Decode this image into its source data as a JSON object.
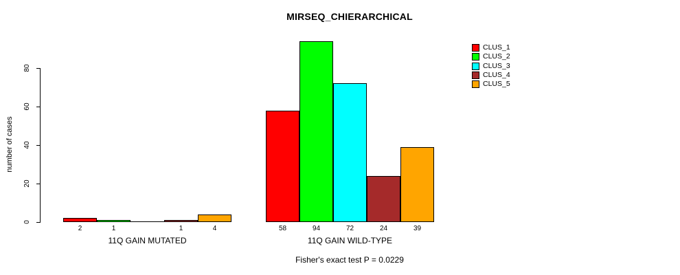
{
  "chart_data": {
    "type": "bar",
    "title": "MIRSEQ_CHIERARCHICAL",
    "ylabel": "number of cases",
    "xlabel": "",
    "ylim": [
      0,
      94
    ],
    "yticks": [
      0,
      20,
      40,
      60,
      80
    ],
    "grid": false,
    "legend_position": "top-right",
    "categories": [
      "11Q GAIN MUTATED",
      "11Q GAIN WILD-TYPE"
    ],
    "groups": [
      {
        "label": "11Q GAIN MUTATED",
        "values": [
          2,
          1,
          0,
          1,
          4
        ]
      },
      {
        "label": "11Q GAIN WILD-TYPE",
        "values": [
          58,
          94,
          72,
          24,
          39
        ]
      }
    ],
    "series": [
      {
        "name": "CLUS_1",
        "color": "#ff0000",
        "values": [
          2,
          58
        ]
      },
      {
        "name": "CLUS_2",
        "color": "#00ff00",
        "values": [
          1,
          94
        ]
      },
      {
        "name": "CLUS_3",
        "color": "#00ffff",
        "values": [
          0,
          72
        ]
      },
      {
        "name": "CLUS_4",
        "color": "#a52a2a",
        "values": [
          1,
          24
        ]
      },
      {
        "name": "CLUS_5",
        "color": "#ffa500",
        "values": [
          4,
          39
        ]
      }
    ],
    "bar_value_labels_note": "value printed under each bar; bars with value 0 get no label",
    "annotation": "Fisher's exact test P = 0.0229"
  }
}
